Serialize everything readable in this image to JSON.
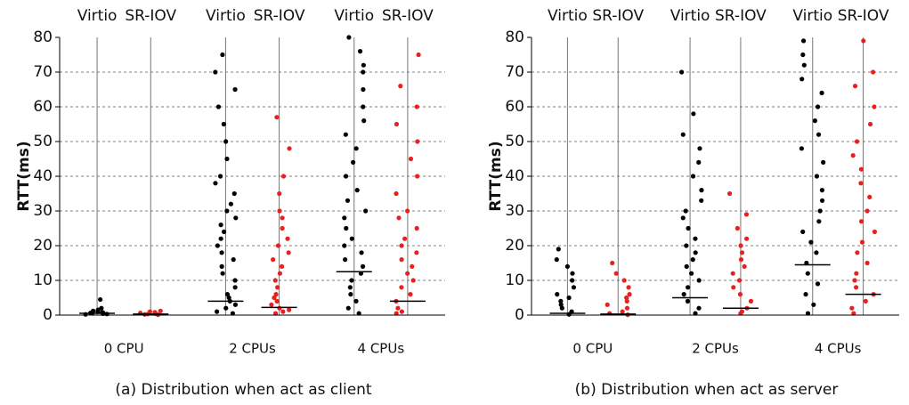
{
  "chart_data": [
    {
      "type": "strip",
      "title": "(a) Distribution when act as client",
      "ylabel": "RTT(ms)",
      "categories": [
        "0 CPU",
        "2 CPUs",
        "4 CPUs"
      ],
      "ylim": [
        0,
        80
      ],
      "yticks": [
        0,
        10,
        20,
        30,
        40,
        50,
        60,
        70,
        80
      ],
      "grid": true,
      "series": [
        {
          "name": "Virtio",
          "color": "#000000",
          "medians": [
            0.5,
            4,
            12.5
          ],
          "values": [
            [
              0.2,
              0.3,
              0.5,
              0.6,
              0.8,
              1,
              1.2,
              0.4,
              0.7,
              1.5,
              2,
              4.5
            ],
            [
              0.5,
              1,
              2,
              3,
              4,
              5,
              6,
              8,
              10,
              12,
              14,
              16,
              18,
              20,
              22,
              24,
              26,
              28,
              30,
              32,
              35,
              38,
              40,
              45,
              50,
              55,
              60,
              65,
              70,
              75
            ],
            [
              0.5,
              2,
              4,
              6,
              8,
              10,
              12,
              14,
              16,
              18,
              20,
              22,
              25,
              28,
              30,
              33,
              36,
              40,
              44,
              48,
              52,
              56,
              60,
              65,
              70,
              72,
              76,
              80
            ]
          ]
        },
        {
          "name": "SR-IOV",
          "color": "#e82020",
          "medians": [
            0.3,
            2.2,
            4
          ],
          "values": [
            [
              0.1,
              0.2,
              0.3,
              0.4,
              0.5,
              0.6,
              0.8,
              1,
              1.2
            ],
            [
              0.5,
              1,
              1.5,
              2,
              3,
              4,
              5,
              6,
              8,
              10,
              12,
              14,
              16,
              18,
              20,
              22,
              25,
              28,
              30,
              35,
              40,
              48,
              57
            ],
            [
              0.5,
              1,
              2,
              4,
              6,
              8,
              10,
              12,
              14,
              16,
              18,
              20,
              22,
              25,
              28,
              30,
              35,
              40,
              45,
              50,
              55,
              60,
              66,
              75
            ]
          ]
        }
      ]
    },
    {
      "type": "strip",
      "title": "(b) Distribution when act as server",
      "ylabel": "RTT(ms)",
      "categories": [
        "0 CPU",
        "2 CPUs",
        "4 CPUs"
      ],
      "ylim": [
        0,
        80
      ],
      "yticks": [
        0,
        10,
        20,
        30,
        40,
        50,
        60,
        70,
        80
      ],
      "grid": true,
      "series": [
        {
          "name": "Virtio",
          "color": "#000000",
          "medians": [
            0.5,
            5,
            14.5
          ],
          "values": [
            [
              0.2,
              1,
              2,
              3,
              4,
              5,
              6,
              8,
              10,
              12,
              14,
              16,
              19
            ],
            [
              0.5,
              2,
              4,
              6,
              8,
              10,
              12,
              14,
              16,
              18,
              20,
              22,
              25,
              28,
              30,
              33,
              36,
              40,
              44,
              48,
              52,
              58,
              70
            ],
            [
              0.5,
              3,
              6,
              9,
              12,
              15,
              18,
              21,
              24,
              27,
              30,
              33,
              36,
              40,
              44,
              48,
              52,
              56,
              60,
              64,
              68,
              72,
              75,
              79
            ]
          ]
        },
        {
          "name": "SR-IOV",
          "color": "#e82020",
          "medians": [
            0.3,
            2,
            6
          ],
          "values": [
            [
              0.1,
              0.5,
              1,
              2,
              3,
              4,
              5,
              6,
              8,
              10,
              12,
              15
            ],
            [
              0.5,
              1,
              2,
              4,
              6,
              8,
              10,
              12,
              14,
              16,
              18,
              20,
              22,
              25,
              29,
              35
            ],
            [
              0.5,
              2,
              4,
              6,
              8,
              10,
              12,
              15,
              18,
              21,
              24,
              27,
              30,
              34,
              38,
              42,
              46,
              50,
              55,
              60,
              66,
              70,
              79
            ]
          ]
        }
      ]
    }
  ]
}
